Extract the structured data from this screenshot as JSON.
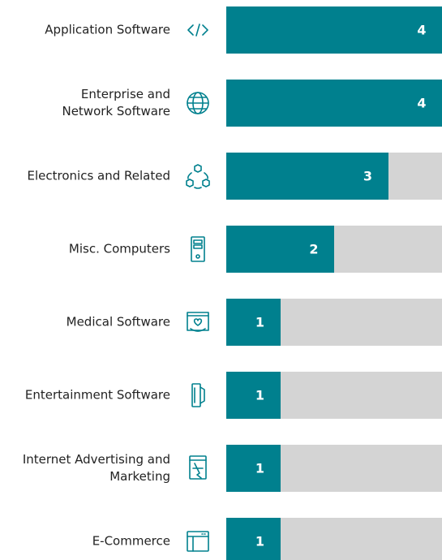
{
  "chart_data": {
    "type": "bar",
    "orientation": "horizontal",
    "categories": [
      "Application Software",
      "Enterprise and\nNetwork Software",
      "Electronics and Related",
      "Misc. Computers",
      "Medical Software",
      "Entertainment Software",
      "Internet Advertising and\nMarketing",
      "E-Commerce"
    ],
    "values": [
      4,
      4,
      3,
      2,
      1,
      1,
      1,
      1
    ],
    "color": "#00808e",
    "track_color": "#d4d4d4",
    "xlim": [
      0,
      4
    ]
  }
}
